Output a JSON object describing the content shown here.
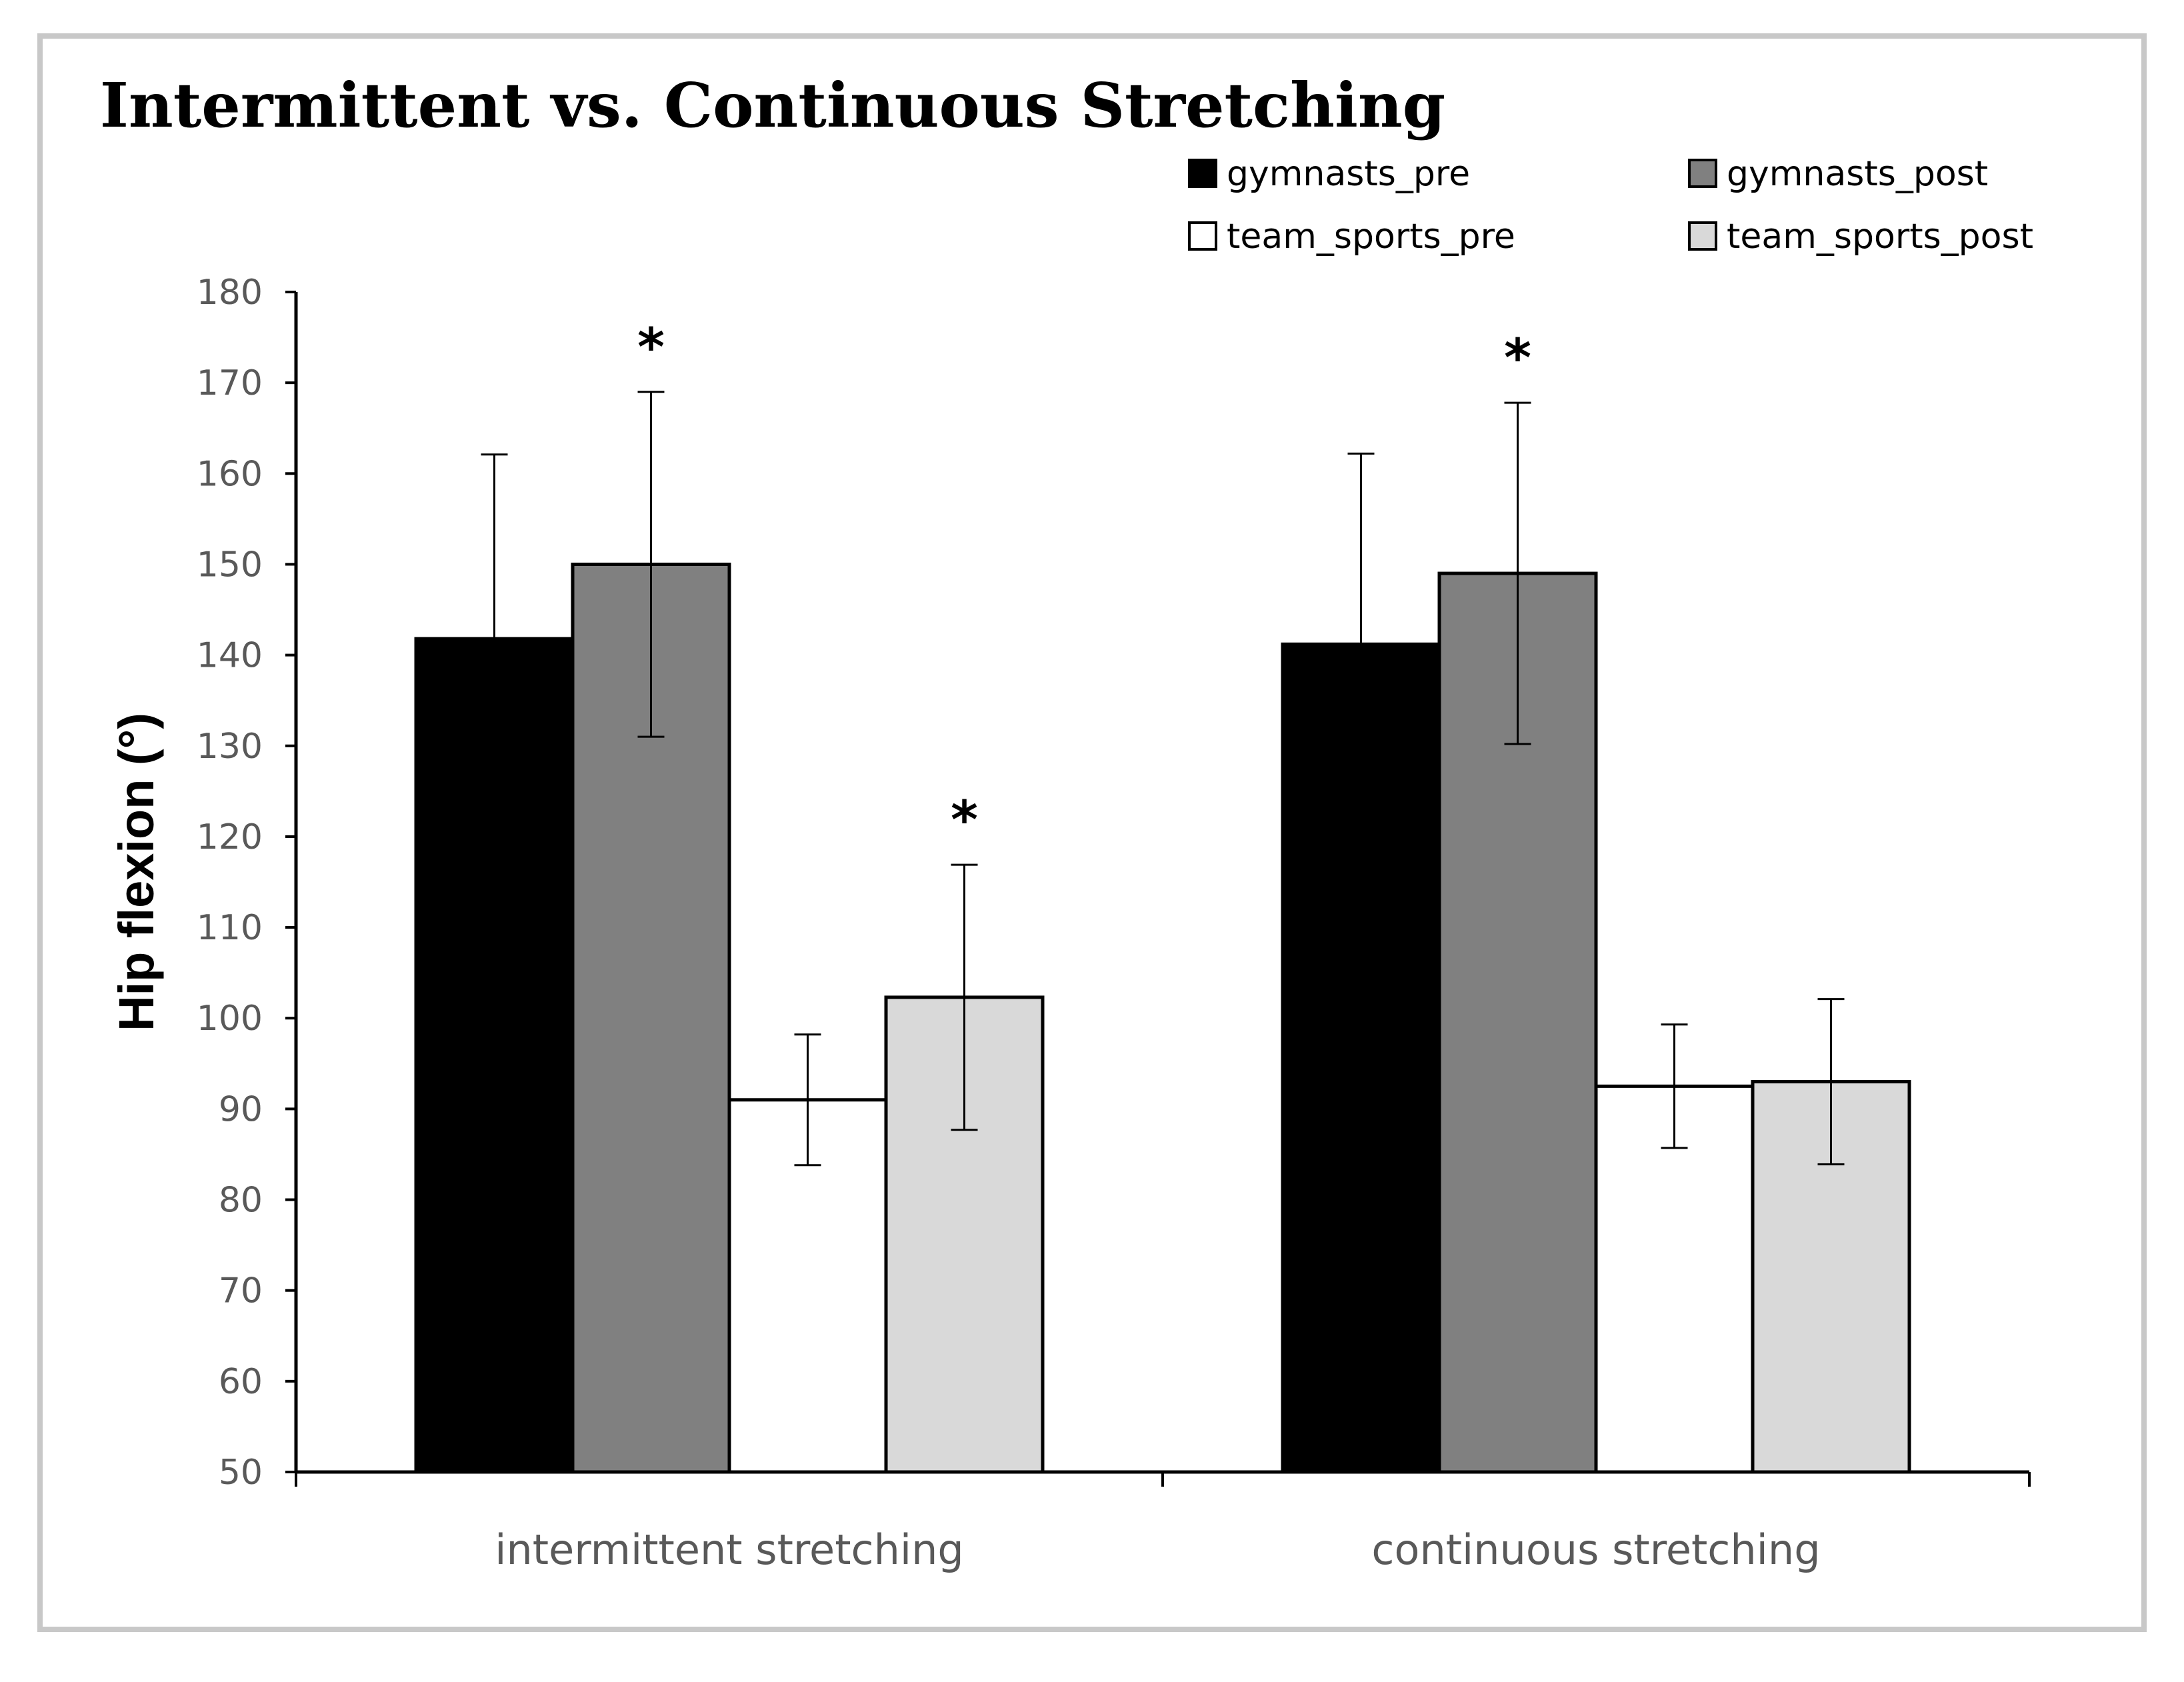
{
  "chart_data": {
    "type": "bar",
    "title": "Intermittent vs. Continuous Stretching",
    "xlabel": "",
    "ylabel": "Hip flexion (°)",
    "ylim": [
      50,
      180
    ],
    "yticks": [
      "50",
      "60",
      "70",
      "80",
      "90",
      "100",
      "110",
      "120",
      "130",
      "140",
      "150",
      "160",
      "170",
      "180"
    ],
    "categories": [
      "intermittent stretching",
      "continuous stretching"
    ],
    "series": [
      {
        "name": "gymnasts_pre",
        "color": "#000000",
        "values": [
          141.8,
          141.2
        ],
        "errors": [
          20.3,
          21.0
        ],
        "significance": [
          "",
          ""
        ]
      },
      {
        "name": "gymnasts_post",
        "color": "#808080",
        "values": [
          150.0,
          149.0
        ],
        "errors": [
          19.0,
          18.8
        ],
        "significance": [
          "*",
          "*"
        ]
      },
      {
        "name": "team_sports_pre",
        "color": "#ffffff",
        "values": [
          91.0,
          92.5
        ],
        "errors": [
          7.2,
          6.8
        ],
        "significance": [
          "",
          ""
        ]
      },
      {
        "name": "team_sports_post",
        "color": "#d9d9d9",
        "values": [
          102.3,
          93.0
        ],
        "errors": [
          14.6,
          9.1
        ],
        "significance": [
          "*",
          ""
        ]
      }
    ],
    "legend_position": "top-right",
    "grid": false
  }
}
